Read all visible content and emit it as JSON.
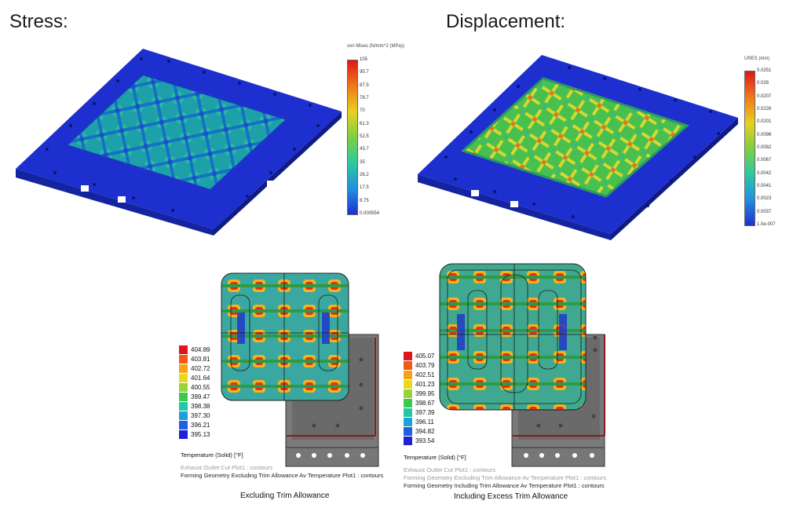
{
  "stress": {
    "title": "Stress:",
    "legend_title": "von Mises (N/mm^2 (MPa))",
    "ticks": [
      "105",
      "95.7",
      "87.5",
      "78.7",
      "70",
      "61.3",
      "52.5",
      "43.7",
      "35",
      "26.2",
      "17.5",
      "8.75",
      "0.000554"
    ]
  },
  "displacement": {
    "title": "Displacement:",
    "legend_title": "URES (mm)",
    "ticks": [
      "0.0251",
      "0.028",
      "0.0207",
      "0.0226",
      "0.0201",
      "0.0096",
      "0.0082",
      "0.0067",
      "0.0042",
      "0.0041",
      "0.0023",
      "0.0037",
      "1.0e-007"
    ]
  },
  "thermal_left": {
    "values": [
      "404.89",
      "403.81",
      "402.72",
      "401.64",
      "400.55",
      "399.47",
      "398.38",
      "397.30",
      "396.21",
      "395.13"
    ],
    "colors": [
      "#e0141a",
      "#f05a14",
      "#f7a21a",
      "#e8d81e",
      "#9ad23a",
      "#3cc84a",
      "#20c8a8",
      "#1ea0d8",
      "#1e60e0",
      "#2020d8"
    ],
    "unit": "Temperature (Solid) [°F]",
    "note1": "Exhaust Outlet Cut Plot1 : contours",
    "note2": "Forming Geometry Excluding Trim Allowance Av Temperature Plot1 : contours",
    "caption": "Excluding Trim Allowance"
  },
  "thermal_right": {
    "values": [
      "405.07",
      "403.79",
      "402.51",
      "401.23",
      "399.95",
      "398.67",
      "397.39",
      "396.11",
      "394.82",
      "393.54"
    ],
    "colors": [
      "#e0141a",
      "#f05a14",
      "#f7a21a",
      "#e8d81e",
      "#9ad23a",
      "#3cc84a",
      "#20c8a8",
      "#1ea0d8",
      "#1e60e0",
      "#2020d8"
    ],
    "unit": "Temperature (Solid) [°F]",
    "note1": "Exhaust Outlet Cut Plot1 : contours",
    "note2": "Forming Geometry Excluding Trim Allowance Av Temperature Plot1 : contours",
    "note3": "Forming Geometry Including Trim Allowance Av Temperature Plot1 : contours",
    "caption": "Including Excess Trim Allowance"
  }
}
